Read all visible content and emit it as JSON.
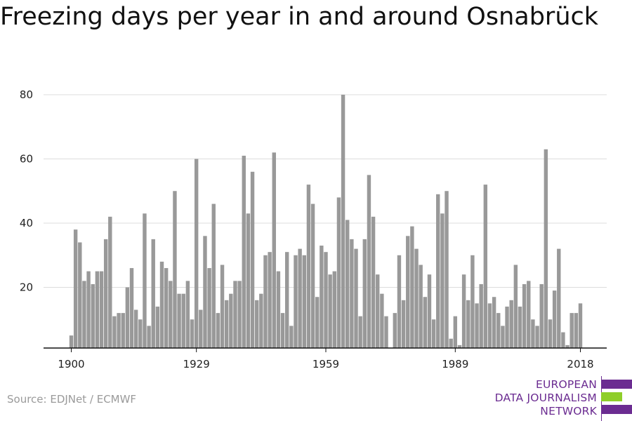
{
  "title": "Freezing days per year in and around Osnabrück",
  "source": "Source: EDJNet / ECMWF",
  "logo": {
    "lines": [
      "EUROPEAN",
      "DATA JOURNALISM",
      "NETWORK"
    ],
    "colors": {
      "purple": "#6b2c91",
      "green": "#8fce2a"
    }
  },
  "chart_data": {
    "type": "bar",
    "title": "Freezing days per year in and around Osnabrück",
    "xlabel": "",
    "ylabel": "",
    "ylim": [
      0,
      80
    ],
    "xlim": [
      1900,
      2018
    ],
    "yticks": [
      20,
      40,
      60,
      80
    ],
    "xticks": [
      1900,
      1929,
      1959,
      1989,
      2018
    ],
    "grid": true,
    "bar_color": "#999999",
    "x": [
      1900,
      1901,
      1902,
      1903,
      1904,
      1905,
      1906,
      1907,
      1908,
      1909,
      1910,
      1911,
      1912,
      1913,
      1914,
      1915,
      1916,
      1917,
      1918,
      1919,
      1920,
      1921,
      1922,
      1923,
      1924,
      1925,
      1926,
      1927,
      1928,
      1929,
      1930,
      1931,
      1932,
      1933,
      1934,
      1935,
      1936,
      1937,
      1938,
      1939,
      1940,
      1941,
      1942,
      1943,
      1944,
      1945,
      1946,
      1947,
      1948,
      1949,
      1950,
      1951,
      1952,
      1953,
      1954,
      1955,
      1956,
      1957,
      1958,
      1959,
      1960,
      1961,
      1962,
      1963,
      1964,
      1965,
      1966,
      1967,
      1968,
      1969,
      1970,
      1971,
      1972,
      1973,
      1974,
      1975,
      1976,
      1977,
      1978,
      1979,
      1980,
      1981,
      1982,
      1983,
      1984,
      1985,
      1986,
      1987,
      1988,
      1989,
      1990,
      1991,
      1992,
      1993,
      1994,
      1995,
      1996,
      1997,
      1998,
      1999,
      2000,
      2001,
      2002,
      2003,
      2004,
      2005,
      2006,
      2007,
      2008,
      2009,
      2010,
      2011,
      2012,
      2013,
      2014,
      2015,
      2016,
      2017,
      2018
    ],
    "values": [
      5,
      38,
      34,
      22,
      25,
      21,
      25,
      25,
      35,
      42,
      11,
      12,
      12,
      20,
      26,
      13,
      10,
      43,
      8,
      35,
      14,
      28,
      26,
      22,
      50,
      18,
      18,
      22,
      10,
      60,
      13,
      36,
      26,
      46,
      12,
      27,
      16,
      18,
      22,
      22,
      61,
      43,
      56,
      16,
      18,
      30,
      31,
      62,
      25,
      12,
      31,
      8,
      30,
      32,
      30,
      52,
      46,
      17,
      33,
      31,
      24,
      25,
      48,
      80,
      41,
      35,
      32,
      11,
      35,
      55,
      42,
      24,
      18,
      11,
      0,
      12,
      30,
      16,
      36,
      39,
      32,
      27,
      17,
      24,
      10,
      49,
      43,
      50,
      4,
      11,
      2,
      24,
      16,
      30,
      15,
      21,
      52,
      15,
      17,
      12,
      8,
      14,
      16,
      27,
      14,
      21,
      22,
      10,
      8,
      21,
      63,
      10,
      19,
      32,
      6,
      2,
      12,
      12,
      15
    ]
  }
}
